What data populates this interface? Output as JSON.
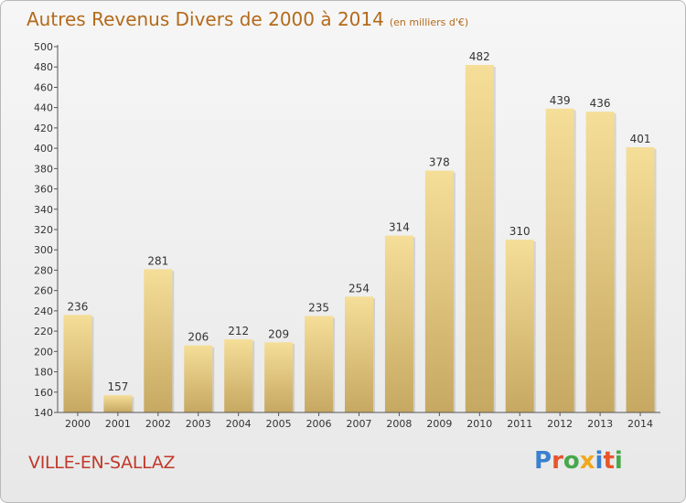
{
  "header": {
    "title": "Autres Revenus Divers de 2000 à 2014",
    "subtitle": "(en milliers d'€)"
  },
  "footer": {
    "commune": "VILLE-EN-SALLAZ",
    "logo_text": "Proxiti"
  },
  "colors": {
    "title": "#b36a1a",
    "commune": "#c0392b",
    "bar_light": "#f5de98",
    "bar_dark": "#c6a862",
    "logo": [
      "#3a7fd0",
      "#e9542b",
      "#47a84a",
      "#f0a81c",
      "#3a7fd0",
      "#e9542b",
      "#47a84a"
    ]
  },
  "chart_data": {
    "type": "bar",
    "title": "Autres Revenus Divers de 2000 à 2014",
    "subtitle": "(en milliers d'€)",
    "categories": [
      "2000",
      "2001",
      "2002",
      "2003",
      "2004",
      "2005",
      "2006",
      "2007",
      "2008",
      "2009",
      "2010",
      "2011",
      "2012",
      "2013",
      "2014"
    ],
    "values": [
      236,
      157,
      281,
      206,
      212,
      209,
      235,
      254,
      314,
      378,
      482,
      310,
      439,
      436,
      401
    ],
    "ylim": [
      140,
      500
    ],
    "yticks": [
      140,
      160,
      180,
      200,
      220,
      240,
      260,
      280,
      300,
      320,
      340,
      360,
      380,
      400,
      420,
      440,
      460,
      480,
      500
    ],
    "grid": false,
    "data_labels": true
  }
}
